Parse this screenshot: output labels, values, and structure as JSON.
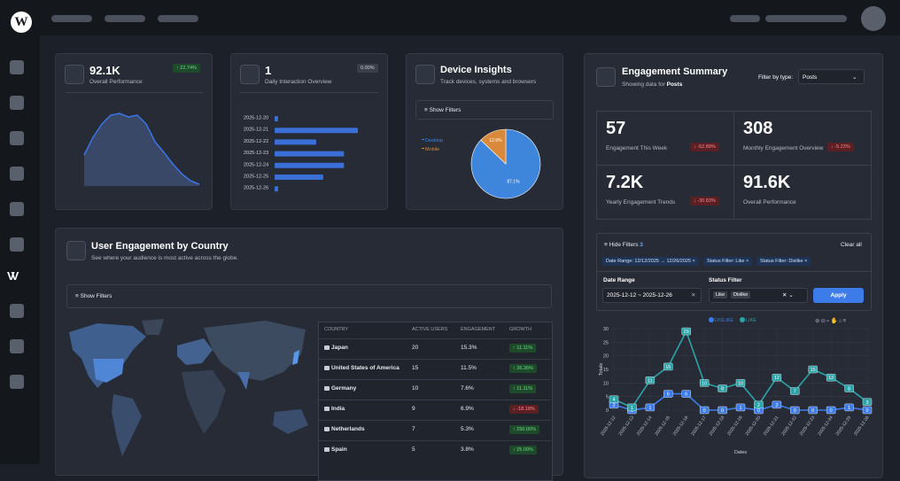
{
  "ui": {
    "kpi1": {
      "value": "92.1K",
      "label": "Overall Performance",
      "change": "↑ 22.74%"
    },
    "kpi2": {
      "value": "1",
      "label": "Daily Interaction Overview",
      "change": "0.00%"
    },
    "devices": {
      "title": "Device Insights",
      "subtitle": "Track devices, systems and browsers",
      "filters": "Show Filters"
    },
    "summary": {
      "title": "Engagement Summary",
      "subtitle_prefix": "Showing data for",
      "subtitle_type": "Posts",
      "filter_label": "Filter by type:",
      "filter_value": "Posts",
      "stats": [
        {
          "value": "57",
          "label": "Engagement This Week",
          "change": "↓ -52.89%"
        },
        {
          "value": "308",
          "label": "Monthly Engagement Overview",
          "change": "↓ -5.23%"
        },
        {
          "value": "7.2K",
          "label": "Yearly Engagement Trends",
          "change": "↓ -30.83%"
        },
        {
          "value": "91.6K",
          "label": "Overall Performance"
        }
      ],
      "filters": {
        "toggle": "Hide Filters",
        "count": "3",
        "clear": "Clear all",
        "chips": [
          "Date Range: 12/12/2025 → 12/26/2025",
          "Status Filter: Like",
          "Status Filter: Dislike"
        ],
        "date_label": "Date Range",
        "date_value": "2025-12-12 ~ 2025-12-26",
        "status_label": "Status Filter",
        "status_values": [
          "Like",
          "Dislike"
        ],
        "apply": "Apply"
      }
    },
    "country": {
      "title": "User Engagement by Country",
      "subtitle": "See where your audience is most active across the globe.",
      "filters": "Show Filters",
      "table": {
        "header": [
          "COUNTRY",
          "ACTIVE USERS",
          "ENGAGEMENT",
          "GROWTH"
        ],
        "rows": [
          [
            "Japan",
            "20",
            "15.3%",
            "↑ 11.11%"
          ],
          [
            "United States of America",
            "15",
            "11.5%",
            "↑ 36.36%"
          ],
          [
            "Germany",
            "10",
            "7.6%",
            "↑ 11.11%"
          ],
          [
            "India",
            "9",
            "6.9%",
            "↓ -18.18%"
          ],
          [
            "Netherlands",
            "7",
            "5.3%",
            "↑ 250.00%"
          ],
          [
            "Spain",
            "5",
            "3.8%",
            "↑ 25.00%"
          ]
        ]
      }
    }
  },
  "chart_data": [
    {
      "type": "area",
      "values": [
        35,
        55,
        70,
        80,
        82,
        78,
        80,
        70,
        50,
        38,
        25,
        14,
        6,
        2
      ],
      "color": "#3b74e6",
      "ylim": [
        0,
        90
      ]
    },
    {
      "type": "hbar",
      "categories": [
        "2025-12-20",
        "2025-12-21",
        "2025-12-22",
        "2025-12-23",
        "2025-12-24",
        "2025-12-25",
        "2025-12-26"
      ],
      "values": [
        1,
        24,
        12,
        20,
        20,
        14,
        1
      ],
      "color": "#3b6fd8",
      "xlim": [
        0,
        24
      ]
    },
    {
      "type": "pie",
      "categories": [
        "Desktop",
        "Mobile"
      ],
      "values": [
        87.1,
        12.9
      ],
      "value_labels": [
        "87.1%",
        "12.9%"
      ],
      "colors": [
        "#3d86dc",
        "#d88a3a"
      ]
    },
    {
      "type": "line",
      "categories": [
        "2025-12-12",
        "2025-12-13",
        "2025-12-14",
        "2025-12-15",
        "2025-12-16",
        "2025-12-17",
        "2025-12-18",
        "2025-12-19",
        "2025-12-20",
        "2025-12-21",
        "2025-12-22",
        "2025-12-23",
        "2025-12-24",
        "2025-12-25",
        "2025-12-26"
      ],
      "series": [
        {
          "name": "DISLIKE",
          "color": "#3d7be8",
          "values": [
            2,
            0,
            1,
            6,
            6,
            0,
            0,
            1,
            0,
            2,
            0,
            0,
            0,
            1,
            0
          ]
        },
        {
          "name": "LIKE",
          "color": "#2ba3a8",
          "values": [
            4,
            1,
            11,
            16,
            29,
            10,
            8,
            10,
            2,
            12,
            7,
            15,
            12,
            8,
            3
          ]
        }
      ],
      "ylim": [
        0,
        30
      ],
      "yticks": [
        0,
        5,
        10,
        15,
        20,
        25,
        30
      ],
      "ylabel": "Totals",
      "xlabel": "Dates",
      "grid": true
    }
  ]
}
